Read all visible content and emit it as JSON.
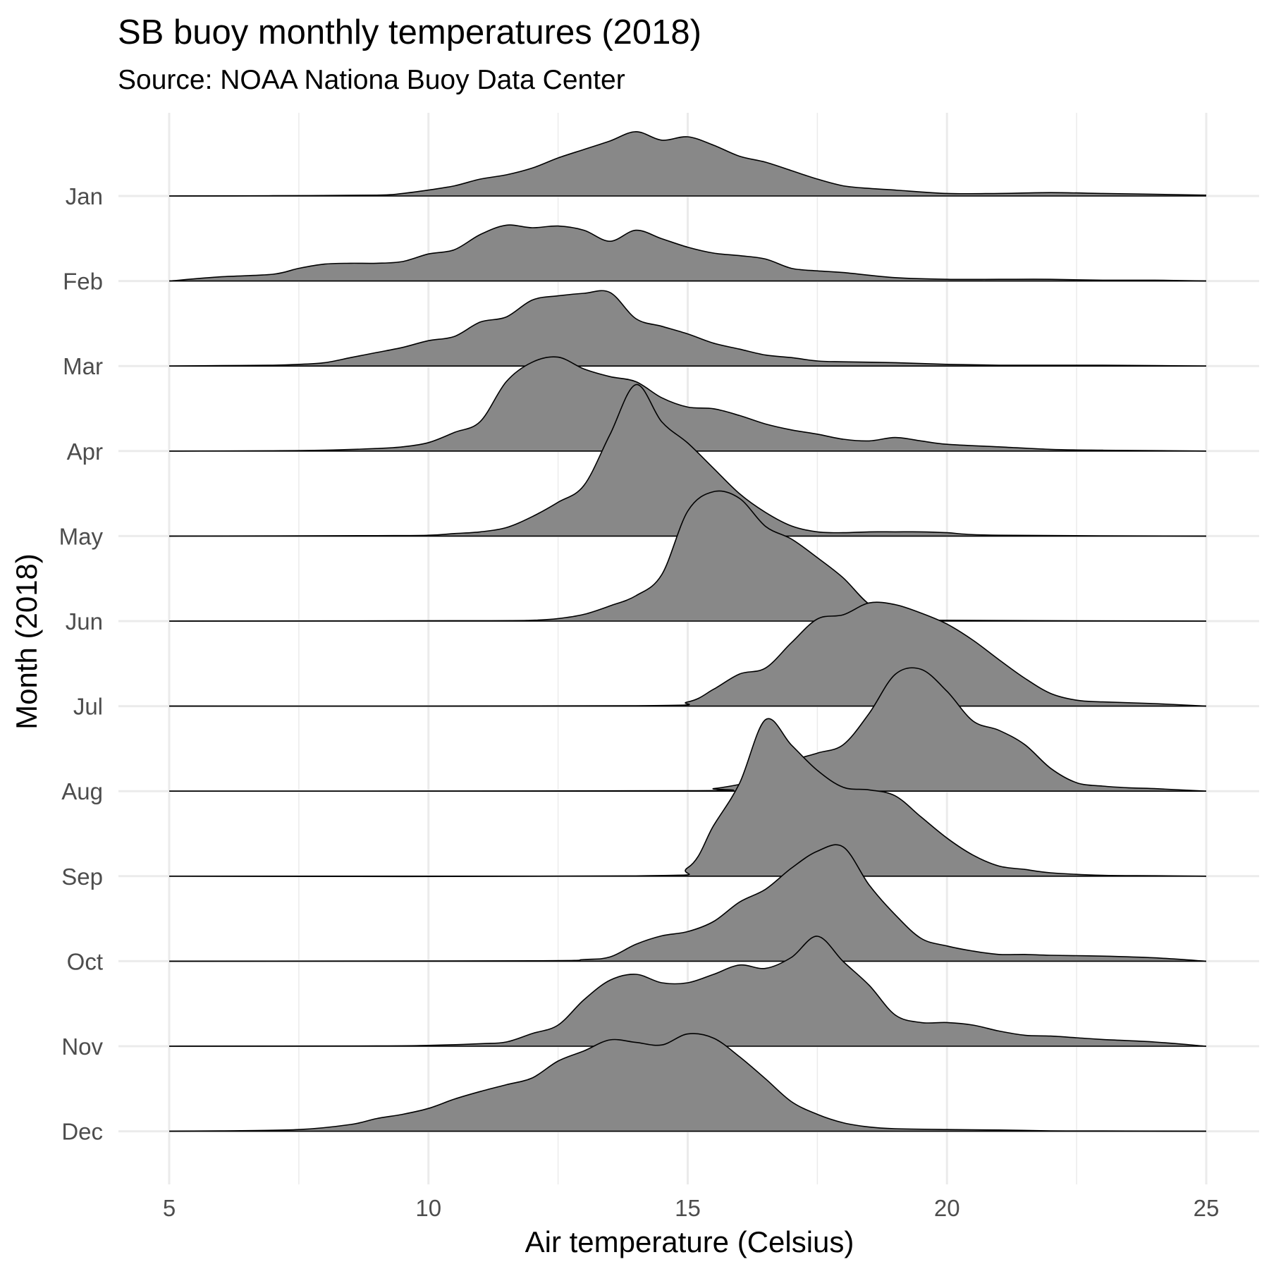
{
  "chart_data": {
    "type": "ridgeline",
    "title": "SB buoy monthly temperatures (2018)",
    "subtitle": "Source: NOAA Nationa Buoy Data Center",
    "xlabel": "Air temperature (Celsius)",
    "ylabel": "Month (2018)",
    "xlim": [
      5,
      25
    ],
    "xticks": [
      5,
      10,
      15,
      20,
      25
    ],
    "categories": [
      "Jan",
      "Feb",
      "Mar",
      "Apr",
      "May",
      "Jun",
      "Jul",
      "Aug",
      "Sep",
      "Oct",
      "Nov",
      "Dec"
    ],
    "grid": true,
    "fill_color": "#888888",
    "line_color": "#000000",
    "grid_color": "#ebebeb",
    "series": [
      {
        "name": "Jan",
        "x": [
          5,
          7,
          9,
          9.5,
          10,
          10.5,
          11,
          11.5,
          12,
          12.5,
          13,
          13.5,
          14,
          14.5,
          15,
          15.5,
          16,
          16.5,
          17,
          17.5,
          18,
          18.5,
          19,
          20,
          21,
          22,
          23,
          24,
          25
        ],
        "y": [
          0,
          0.003,
          0.01,
          0.03,
          0.07,
          0.12,
          0.2,
          0.25,
          0.33,
          0.45,
          0.55,
          0.65,
          0.76,
          0.66,
          0.7,
          0.6,
          0.47,
          0.4,
          0.3,
          0.2,
          0.12,
          0.09,
          0.07,
          0.03,
          0.03,
          0.04,
          0.03,
          0.02,
          0.01
        ]
      },
      {
        "name": "Feb",
        "x": [
          5,
          6,
          7,
          7.5,
          8,
          8.5,
          9,
          9.5,
          10,
          10.5,
          11,
          11.5,
          12,
          12.5,
          13,
          13.5,
          14,
          14.5,
          15,
          15.5,
          16,
          16.5,
          17,
          17.5,
          18,
          19,
          20,
          21,
          22,
          23,
          24,
          25
        ],
        "y": [
          0,
          0.05,
          0.08,
          0.15,
          0.2,
          0.21,
          0.21,
          0.23,
          0.32,
          0.37,
          0.55,
          0.66,
          0.63,
          0.65,
          0.6,
          0.47,
          0.6,
          0.5,
          0.4,
          0.33,
          0.3,
          0.26,
          0.15,
          0.12,
          0.1,
          0.04,
          0.02,
          0.02,
          0.02,
          0.01,
          0.01,
          0
        ]
      },
      {
        "name": "Mar",
        "x": [
          5,
          6,
          7,
          7.5,
          8,
          8.5,
          9,
          9.5,
          10,
          10.5,
          11,
          11.5,
          12,
          12.5,
          13,
          13.5,
          14,
          14.5,
          15,
          15.5,
          16,
          16.5,
          17,
          17.5,
          18,
          19,
          20,
          21,
          22,
          23,
          24,
          25
        ],
        "y": [
          0,
          0.005,
          0.01,
          0.02,
          0.04,
          0.1,
          0.16,
          0.22,
          0.3,
          0.35,
          0.52,
          0.58,
          0.78,
          0.83,
          0.86,
          0.87,
          0.56,
          0.47,
          0.38,
          0.27,
          0.2,
          0.13,
          0.1,
          0.06,
          0.05,
          0.04,
          0.02,
          0.01,
          0.01,
          0.01,
          0.005,
          0
        ]
      },
      {
        "name": "Apr",
        "x": [
          5,
          7,
          8,
          9,
          9.5,
          10,
          10.5,
          11,
          11.5,
          12,
          12.5,
          13,
          13.5,
          14,
          14.5,
          15,
          15.5,
          16,
          16.5,
          17,
          17.5,
          18,
          18.5,
          19,
          19.5,
          20,
          21,
          22,
          23,
          24,
          25
        ],
        "y": [
          0,
          0.003,
          0.01,
          0.03,
          0.05,
          0.1,
          0.22,
          0.35,
          0.82,
          1.05,
          1.11,
          0.97,
          0.88,
          0.82,
          0.63,
          0.52,
          0.5,
          0.42,
          0.32,
          0.25,
          0.2,
          0.14,
          0.12,
          0.16,
          0.12,
          0.08,
          0.05,
          0.02,
          0.01,
          0.005,
          0
        ]
      },
      {
        "name": "May",
        "x": [
          5,
          9,
          10,
          10.5,
          11,
          11.5,
          12,
          12.5,
          13,
          13.5,
          14,
          14.5,
          15,
          15.5,
          16,
          16.5,
          17,
          17.5,
          18,
          18.5,
          19,
          19.5,
          20,
          21,
          25
        ],
        "y": [
          0,
          0.005,
          0.01,
          0.03,
          0.05,
          0.1,
          0.23,
          0.4,
          0.6,
          1.2,
          1.79,
          1.35,
          1.1,
          0.8,
          0.5,
          0.28,
          0.12,
          0.05,
          0.04,
          0.05,
          0.05,
          0.05,
          0.04,
          0.01,
          0
        ]
      },
      {
        "name": "Jun",
        "x": [
          5,
          11,
          12,
          12.5,
          13,
          13.5,
          14,
          14.5,
          15,
          15.5,
          16,
          16.5,
          17,
          17.5,
          18,
          18.5,
          19,
          19.5,
          20,
          25
        ],
        "y": [
          0,
          0.005,
          0.01,
          0.03,
          0.08,
          0.18,
          0.3,
          0.55,
          1.3,
          1.53,
          1.45,
          1.12,
          0.97,
          0.75,
          0.51,
          0.2,
          0.08,
          0.03,
          0.01,
          0
        ]
      },
      {
        "name": "Jul",
        "x": [
          5,
          14,
          15,
          15.5,
          16,
          16.5,
          17,
          17.5,
          18,
          18.5,
          19,
          19.5,
          20,
          20.5,
          21,
          21.5,
          22,
          22.5,
          23,
          24,
          25
        ],
        "y": [
          0,
          0.005,
          0.05,
          0.2,
          0.38,
          0.45,
          0.75,
          1.03,
          1.08,
          1.22,
          1.2,
          1.1,
          0.97,
          0.78,
          0.55,
          0.33,
          0.15,
          0.07,
          0.05,
          0.03,
          0
        ]
      },
      {
        "name": "Aug",
        "x": [
          5,
          15,
          15.5,
          16,
          16.5,
          17,
          17.5,
          18,
          18.5,
          19,
          19.5,
          20,
          20.5,
          21,
          21.5,
          22,
          22.5,
          23,
          23.5,
          24,
          25
        ],
        "y": [
          0,
          0.005,
          0.03,
          0.08,
          0.15,
          0.35,
          0.45,
          0.55,
          0.92,
          1.38,
          1.44,
          1.18,
          0.83,
          0.72,
          0.55,
          0.27,
          0.1,
          0.06,
          0.04,
          0.03,
          0
        ]
      },
      {
        "name": "Sep",
        "x": [
          5,
          14,
          15,
          15.5,
          16,
          16.5,
          17,
          17.5,
          18,
          18.5,
          19,
          19.5,
          20,
          20.5,
          21,
          21.5,
          22,
          23,
          24,
          25
        ],
        "y": [
          0,
          0.003,
          0.1,
          0.6,
          1.1,
          1.85,
          1.55,
          1.25,
          1.05,
          1.02,
          0.95,
          0.7,
          0.45,
          0.25,
          0.12,
          0.08,
          0.04,
          0.01,
          0.005,
          0
        ]
      },
      {
        "name": "Oct",
        "x": [
          5,
          12,
          13,
          13.5,
          14,
          14.5,
          15,
          15.5,
          16,
          16.5,
          17,
          17.5,
          18,
          18.5,
          19,
          19.5,
          20,
          20.5,
          21,
          21.5,
          22,
          23,
          24,
          25
        ],
        "y": [
          0,
          0.005,
          0.02,
          0.05,
          0.2,
          0.3,
          0.35,
          0.47,
          0.7,
          0.85,
          1.1,
          1.3,
          1.35,
          0.9,
          0.55,
          0.27,
          0.18,
          0.12,
          0.08,
          0.08,
          0.07,
          0.06,
          0.04,
          0
        ]
      },
      {
        "name": "Nov",
        "x": [
          5,
          9,
          10,
          11,
          11.5,
          12,
          12.5,
          13,
          13.5,
          14,
          14.5,
          15,
          15.5,
          16,
          16.5,
          17,
          17.5,
          18,
          18.5,
          19,
          19.5,
          20,
          20.5,
          21,
          21.5,
          22,
          22.5,
          23,
          24,
          25
        ],
        "y": [
          0,
          0.003,
          0.01,
          0.03,
          0.05,
          0.15,
          0.25,
          0.55,
          0.78,
          0.85,
          0.75,
          0.75,
          0.85,
          0.96,
          0.92,
          1.05,
          1.3,
          1.0,
          0.72,
          0.37,
          0.28,
          0.28,
          0.25,
          0.18,
          0.13,
          0.12,
          0.1,
          0.08,
          0.05,
          0
        ]
      },
      {
        "name": "Dec",
        "x": [
          5,
          6,
          7.5,
          8.5,
          9,
          9.5,
          10,
          10.5,
          11,
          11.5,
          12,
          12.5,
          13,
          13.5,
          14,
          14.5,
          15,
          15.5,
          16,
          16.5,
          17,
          17.5,
          18,
          18.5,
          19,
          20,
          21,
          22,
          23,
          25
        ],
        "y": [
          0,
          0.005,
          0.02,
          0.08,
          0.15,
          0.2,
          0.27,
          0.38,
          0.47,
          0.55,
          0.63,
          0.83,
          0.95,
          1.08,
          1.05,
          1.02,
          1.15,
          1.1,
          0.88,
          0.62,
          0.35,
          0.2,
          0.1,
          0.05,
          0.03,
          0.02,
          0.015,
          0.005,
          0.003,
          0
        ]
      }
    ]
  }
}
